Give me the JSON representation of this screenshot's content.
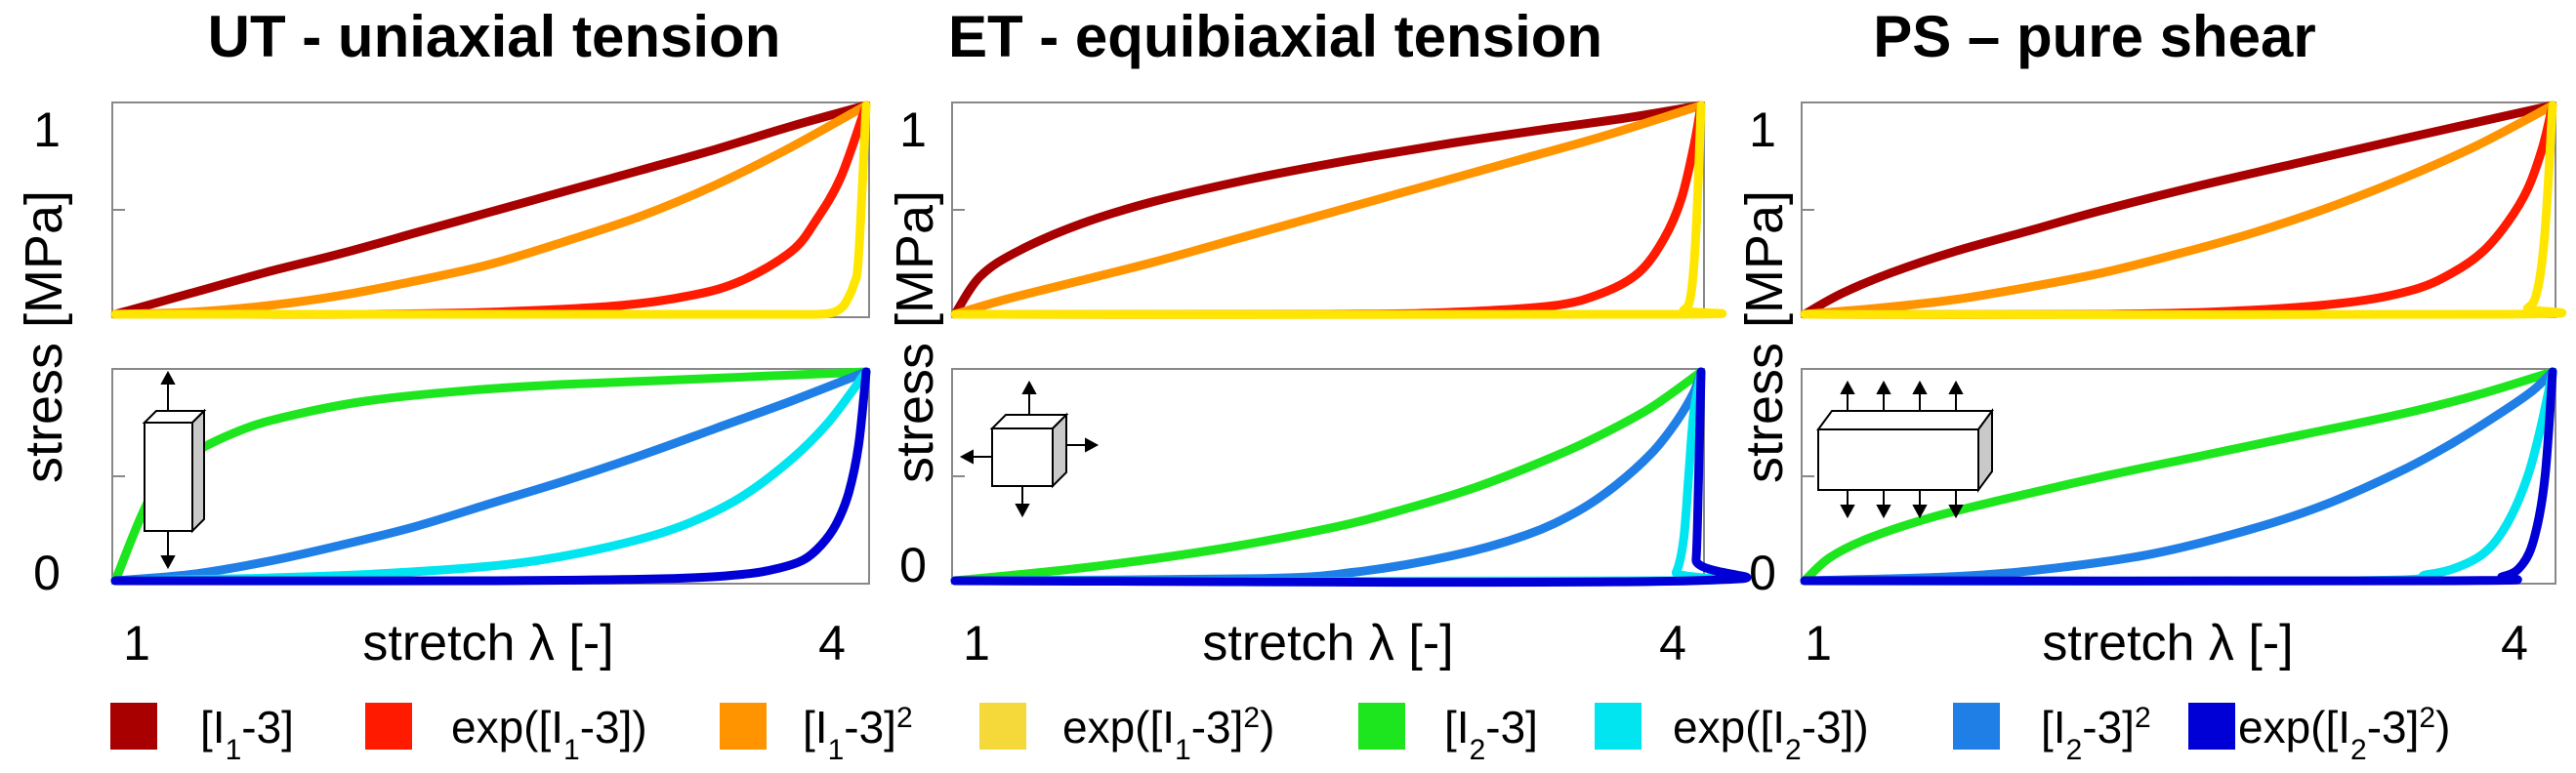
{
  "chart_data": [
    {
      "type": "line",
      "title": "UT - uniaxial tension",
      "ylabel": "stress  [MPa]",
      "xlabel": "stretch λ [-]",
      "xlim": [
        1,
        4
      ],
      "x_ticks": [
        "1",
        "4"
      ],
      "top": {
        "ylim": [
          0,
          1
        ],
        "y_ticks": [
          "0",
          "1"
        ],
        "series": [
          {
            "color": "#a80000",
            "x": [
              1.0,
              1.3,
              1.6,
              1.9,
              2.2,
              2.5,
              2.8,
              3.1,
              3.4,
              3.7,
              4.0
            ],
            "y": [
              0.0,
              0.1,
              0.2,
              0.29,
              0.39,
              0.49,
              0.59,
              0.69,
              0.79,
              0.9,
              1.0
            ]
          },
          {
            "color": "#ff9400",
            "x": [
              1.0,
              1.3,
              1.6,
              1.9,
              2.2,
              2.5,
              2.8,
              3.1,
              3.4,
              3.7,
              4.0
            ],
            "y": [
              0.0,
              0.01,
              0.04,
              0.09,
              0.16,
              0.24,
              0.35,
              0.47,
              0.62,
              0.8,
              1.0
            ]
          },
          {
            "color": "#ff1a00",
            "x": [
              1.0,
              1.5,
              2.0,
              2.5,
              3.0,
              3.3,
              3.5,
              3.7,
              3.8,
              3.9,
              4.0
            ],
            "y": [
              0.0,
              0.0,
              0.0,
              0.01,
              0.04,
              0.09,
              0.16,
              0.3,
              0.45,
              0.66,
              1.0
            ]
          },
          {
            "color": "#ffe600",
            "x": [
              1.0,
              3.5,
              3.8,
              3.87,
              3.9,
              3.92,
              3.95,
              3.97,
              4.0
            ],
            "y": [
              0.0,
              0.0,
              0.0,
              0.01,
              0.03,
              0.06,
              0.14,
              0.28,
              1.0
            ]
          }
        ]
      },
      "bottom": {
        "ylim": [
          0,
          1
        ],
        "y_ticks": [
          "0",
          "1"
        ],
        "series": [
          {
            "color": "#1ee61e",
            "x": [
              1.0,
              1.15,
              1.3,
              1.5,
              1.7,
              2.0,
              2.4,
              2.8,
              3.2,
              3.6,
              4.0
            ],
            "y": [
              0.0,
              0.42,
              0.6,
              0.72,
              0.79,
              0.86,
              0.91,
              0.94,
              0.96,
              0.98,
              1.0
            ]
          },
          {
            "color": "#1f7fe6",
            "x": [
              1.0,
              1.3,
              1.6,
              1.9,
              2.2,
              2.5,
              2.8,
              3.1,
              3.4,
              3.7,
              4.0
            ],
            "y": [
              0.0,
              0.03,
              0.09,
              0.17,
              0.26,
              0.37,
              0.48,
              0.6,
              0.73,
              0.86,
              1.0
            ]
          },
          {
            "color": "#00e5f0",
            "x": [
              1.0,
              1.5,
              2.0,
              2.5,
              2.8,
              3.1,
              3.3,
              3.5,
              3.7,
              3.85,
              4.0
            ],
            "y": [
              0.0,
              0.01,
              0.03,
              0.07,
              0.12,
              0.2,
              0.28,
              0.4,
              0.58,
              0.76,
              1.0
            ]
          },
          {
            "color": "#0000d6",
            "x": [
              1.0,
              2.5,
              3.2,
              3.5,
              3.65,
              3.75,
              3.82,
              3.88,
              3.93,
              3.97,
              4.0
            ],
            "y": [
              0.0,
              0.0,
              0.01,
              0.03,
              0.06,
              0.1,
              0.17,
              0.27,
              0.42,
              0.65,
              1.0
            ]
          }
        ]
      }
    },
    {
      "type": "line",
      "title": "ET - equibiaxial tension",
      "ylabel": "stress  [MPa]",
      "xlabel": "stretch λ [-]",
      "xlim": [
        1,
        4
      ],
      "x_ticks": [
        "1",
        "4"
      ],
      "top": {
        "ylim": [
          0,
          1
        ],
        "y_ticks": [
          "0",
          "1"
        ],
        "series": [
          {
            "color": "#a80000",
            "x": [
              1.0,
              1.1,
              1.25,
              1.5,
              1.8,
              2.2,
              2.6,
              3.0,
              3.4,
              3.7,
              4.0
            ],
            "y": [
              0.0,
              0.18,
              0.3,
              0.43,
              0.54,
              0.65,
              0.74,
              0.82,
              0.89,
              0.94,
              1.0
            ]
          },
          {
            "color": "#ff9400",
            "x": [
              1.0,
              1.2,
              1.5,
              1.8,
              2.1,
              2.4,
              2.7,
              3.0,
              3.3,
              3.6,
              4.0
            ],
            "y": [
              0.0,
              0.07,
              0.16,
              0.25,
              0.35,
              0.45,
              0.55,
              0.65,
              0.75,
              0.85,
              1.0
            ]
          },
          {
            "color": "#ff1a00",
            "x": [
              1.0,
              2.5,
              3.0,
              3.4,
              3.6,
              3.75,
              3.85,
              3.92,
              3.97,
              4.0
            ],
            "y": [
              0.0,
              0.0,
              0.01,
              0.04,
              0.1,
              0.2,
              0.36,
              0.55,
              0.8,
              1.0
            ]
          },
          {
            "color": "#ffe600",
            "x": [
              1.0,
              3.85,
              3.93,
              3.96,
              3.98,
              4.0
            ],
            "y": [
              0.0,
              0.0,
              0.02,
              0.1,
              0.4,
              1.0
            ]
          }
        ]
      },
      "bottom": {
        "ylim": [
          0,
          1
        ],
        "y_ticks": [
          "0",
          "1"
        ],
        "series": [
          {
            "color": "#1ee61e",
            "x": [
              1.0,
              1.5,
              2.0,
              2.5,
              2.8,
              3.1,
              3.4,
              3.6,
              3.8,
              4.0
            ],
            "y": [
              0.0,
              0.06,
              0.14,
              0.25,
              0.34,
              0.45,
              0.59,
              0.7,
              0.83,
              1.0
            ]
          },
          {
            "color": "#1f7fe6",
            "x": [
              1.0,
              2.2,
              2.6,
              3.0,
              3.3,
              3.5,
              3.65,
              3.8,
              3.9,
              3.97,
              4.0
            ],
            "y": [
              0.0,
              0.01,
              0.04,
              0.12,
              0.22,
              0.33,
              0.45,
              0.61,
              0.76,
              0.9,
              1.0
            ]
          },
          {
            "color": "#00e5f0",
            "x": [
              1.0,
              3.85,
              3.9,
              3.93,
              3.95,
              3.97,
              4.0
            ],
            "y": [
              0.0,
              0.0,
              0.04,
              0.2,
              0.5,
              0.8,
              1.0
            ]
          },
          {
            "color": "#0000d6",
            "x": [
              1.0,
              3.96,
              3.98,
              3.99,
              4.0
            ],
            "y": [
              0.0,
              0.0,
              0.1,
              0.5,
              1.0
            ]
          }
        ]
      }
    },
    {
      "type": "line",
      "title": "PS – pure shear",
      "ylabel": "stress  [MPa]",
      "xlabel": "stretch λ [-]",
      "xlim": [
        1,
        4
      ],
      "x_ticks": [
        "1",
        "4"
      ],
      "top": {
        "ylim": [
          0,
          1
        ],
        "y_ticks": [
          "0",
          "1"
        ],
        "series": [
          {
            "color": "#a80000",
            "x": [
              1.0,
              1.15,
              1.35,
              1.6,
              1.9,
              2.2,
              2.6,
              3.0,
              3.4,
              3.7,
              4.0
            ],
            "y": [
              0.0,
              0.1,
              0.2,
              0.3,
              0.4,
              0.5,
              0.62,
              0.73,
              0.84,
              0.92,
              1.0
            ]
          },
          {
            "color": "#ff9400",
            "x": [
              1.0,
              1.3,
              1.6,
              1.9,
              2.2,
              2.5,
              2.8,
              3.1,
              3.4,
              3.7,
              4.0
            ],
            "y": [
              0.0,
              0.03,
              0.07,
              0.13,
              0.2,
              0.29,
              0.39,
              0.51,
              0.65,
              0.81,
              1.0
            ]
          },
          {
            "color": "#ff1a00",
            "x": [
              1.0,
              2.2,
              2.8,
              3.2,
              3.45,
              3.6,
              3.72,
              3.82,
              3.9,
              3.96,
              4.0
            ],
            "y": [
              0.0,
              0.0,
              0.02,
              0.06,
              0.12,
              0.2,
              0.3,
              0.44,
              0.6,
              0.8,
              1.0
            ]
          },
          {
            "color": "#ffe600",
            "x": [
              1.0,
              3.8,
              3.9,
              3.94,
              3.97,
              4.0
            ],
            "y": [
              0.0,
              0.0,
              0.03,
              0.12,
              0.4,
              1.0
            ]
          }
        ]
      },
      "bottom": {
        "ylim": [
          0,
          1
        ],
        "y_ticks": [
          "0",
          "1"
        ],
        "series": [
          {
            "color": "#1ee61e",
            "x": [
              1.0,
              1.1,
              1.25,
              1.5,
              1.8,
              2.2,
              2.6,
              3.0,
              3.4,
              3.7,
              4.0
            ],
            "y": [
              0.0,
              0.11,
              0.2,
              0.3,
              0.39,
              0.5,
              0.6,
              0.7,
              0.8,
              0.89,
              1.0
            ]
          },
          {
            "color": "#1f7fe6",
            "x": [
              1.0,
              1.6,
              2.0,
              2.4,
              2.8,
              3.1,
              3.4,
              3.6,
              3.8,
              3.92,
              4.0
            ],
            "y": [
              0.0,
              0.02,
              0.06,
              0.13,
              0.25,
              0.37,
              0.53,
              0.66,
              0.81,
              0.91,
              1.0
            ]
          },
          {
            "color": "#00e5f0",
            "x": [
              1.0,
              3.2,
              3.5,
              3.65,
              3.75,
              3.83,
              3.9,
              3.95,
              4.0
            ],
            "y": [
              0.0,
              0.0,
              0.03,
              0.08,
              0.16,
              0.3,
              0.5,
              0.72,
              1.0
            ]
          },
          {
            "color": "#0000d6",
            "x": [
              1.0,
              3.6,
              3.8,
              3.88,
              3.93,
              3.97,
              4.0
            ],
            "y": [
              0.0,
              0.0,
              0.02,
              0.08,
              0.22,
              0.5,
              1.0
            ]
          }
        ]
      }
    }
  ],
  "legend": [
    {
      "color": "#a80000",
      "main": "[I",
      "sub": "1",
      "mid": "-3]",
      "sup": "",
      "end": ""
    },
    {
      "color": "#ff1a00",
      "main": "exp([I",
      "sub": "1",
      "mid": "-3])",
      "sup": "",
      "end": ""
    },
    {
      "color": "#ff9400",
      "main": "[I",
      "sub": "1",
      "mid": "-3]",
      "sup": "2",
      "end": ""
    },
    {
      "color": "#f5d93a",
      "main": "exp([I",
      "sub": "1",
      "mid": "-3]",
      "sup": "2",
      "end": ")"
    },
    {
      "color": "#1ee61e",
      "main": "[I",
      "sub": "2",
      "mid": "-3]",
      "sup": "",
      "end": ""
    },
    {
      "color": "#00e5f0",
      "main": "exp([I",
      "sub": "2",
      "mid": "-3])",
      "sup": "",
      "end": ""
    },
    {
      "color": "#1f7fe6",
      "main": "[I",
      "sub": "2",
      "mid": "-3]",
      "sup": "2",
      "end": ""
    },
    {
      "color": "#0000d6",
      "main": "exp([I",
      "sub": "2",
      "mid": "-3]",
      "sup": "2",
      "end": ")"
    }
  ]
}
